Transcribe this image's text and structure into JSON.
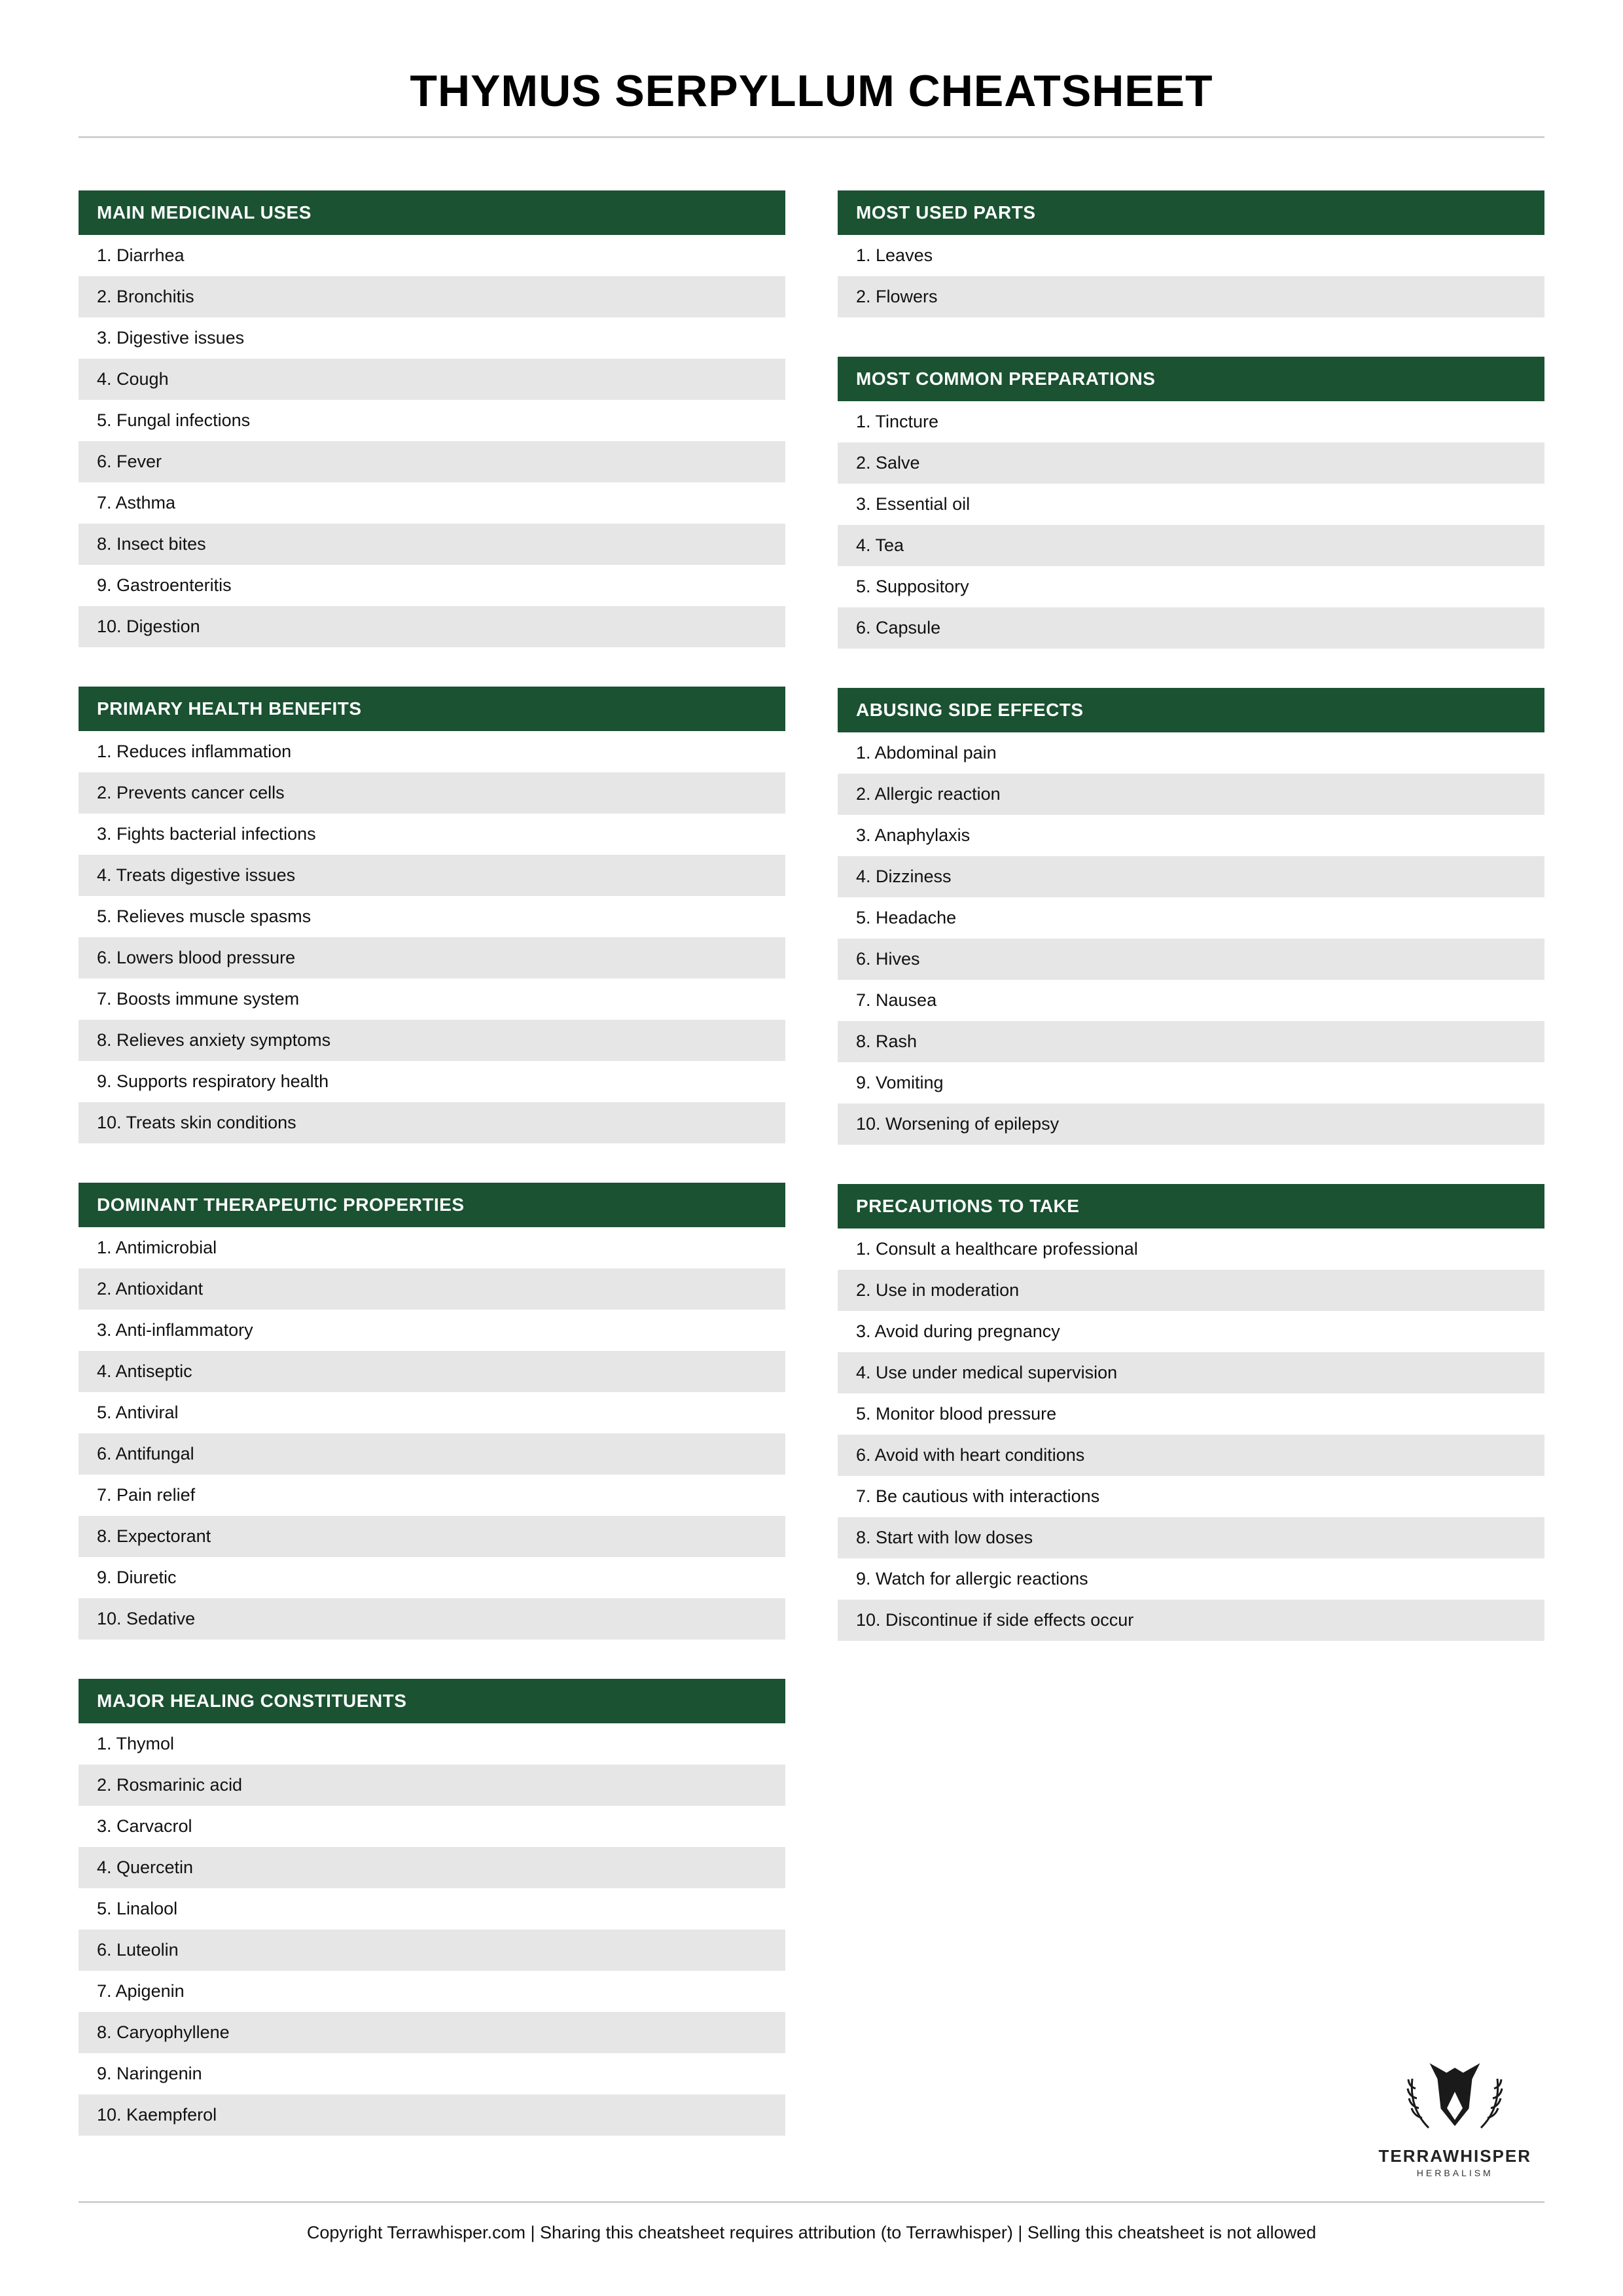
{
  "title": "THYMUS SERPYLLUM CHEATSHEET",
  "colors": {
    "header_bg": "#1a5232",
    "header_text": "#ffffff",
    "row_even_bg": "#e6e6e6",
    "row_odd_bg": "#ffffff",
    "hr": "#d0d0d0"
  },
  "left": [
    {
      "heading": "MAIN MEDICINAL USES",
      "items": [
        "Diarrhea",
        "Bronchitis",
        "Digestive issues",
        "Cough",
        "Fungal infections",
        "Fever",
        "Asthma",
        "Insect bites",
        "Gastroenteritis",
        "Digestion"
      ]
    },
    {
      "heading": "PRIMARY HEALTH BENEFITS",
      "items": [
        "Reduces inflammation",
        "Prevents cancer cells",
        "Fights bacterial infections",
        "Treats digestive issues",
        "Relieves muscle spasms",
        "Lowers blood pressure",
        "Boosts immune system",
        "Relieves anxiety symptoms",
        "Supports respiratory health",
        "Treats skin conditions"
      ]
    },
    {
      "heading": "DOMINANT THERAPEUTIC PROPERTIES",
      "items": [
        "Antimicrobial",
        "Antioxidant",
        "Anti-inflammatory",
        "Antiseptic",
        "Antiviral",
        "Antifungal",
        "Pain relief",
        "Expectorant",
        "Diuretic",
        "Sedative"
      ]
    },
    {
      "heading": "MAJOR HEALING CONSTITUENTS",
      "items": [
        "Thymol",
        "Rosmarinic acid",
        "Carvacrol",
        "Quercetin",
        "Linalool",
        "Luteolin",
        "Apigenin",
        "Caryophyllene",
        "Naringenin",
        "Kaempferol"
      ]
    }
  ],
  "right": [
    {
      "heading": "MOST USED PARTS",
      "items": [
        "Leaves",
        "Flowers"
      ]
    },
    {
      "heading": "MOST COMMON PREPARATIONS",
      "items": [
        "Tincture",
        "Salve",
        "Essential oil",
        "Tea",
        "Suppository",
        "Capsule"
      ]
    },
    {
      "heading": "ABUSING SIDE EFFECTS",
      "items": [
        "Abdominal pain",
        "Allergic reaction",
        "Anaphylaxis",
        "Dizziness",
        "Headache",
        "Hives",
        "Nausea",
        "Rash",
        "Vomiting",
        "Worsening of epilepsy"
      ]
    },
    {
      "heading": "PRECAUTIONS TO TAKE",
      "items": [
        "Consult a healthcare professional",
        "Use in moderation",
        "Avoid during pregnancy",
        "Use under medical supervision",
        "Monitor blood pressure",
        "Avoid with heart conditions",
        "Be cautious with interactions",
        "Start with low doses",
        "Watch for allergic reactions",
        "Discontinue if side effects occur"
      ]
    }
  ],
  "logo": {
    "brand": "TERRAWHISPER",
    "sub": "HERBALISM"
  },
  "footer": "Copyright Terrawhisper.com | Sharing this cheatsheet requires attribution (to Terrawhisper) | Selling this cheatsheet is not allowed"
}
